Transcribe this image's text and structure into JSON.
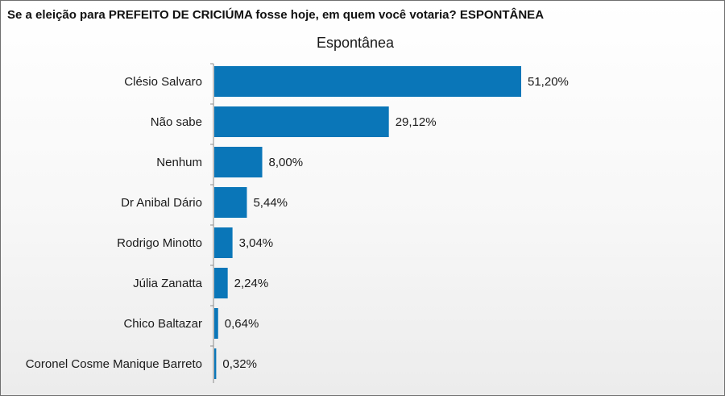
{
  "header": {
    "question": "Se a eleição para PREFEITO DE CRICIÚMA fosse hoje, em quem você votaria? ESPONTÂNEA"
  },
  "chart_data": {
    "type": "bar",
    "orientation": "horizontal",
    "title": "Espontânea",
    "xlabel": "",
    "ylabel": "",
    "categories": [
      "Clésio Salvaro",
      "Não sabe",
      "Nenhum",
      "Dr Anibal Dário",
      "Rodrigo Minotto",
      "Júlia Zanatta",
      "Chico Baltazar",
      "Coronel Cosme Manique Barreto"
    ],
    "values": [
      51.2,
      29.12,
      8.0,
      5.44,
      3.04,
      2.24,
      0.64,
      0.32
    ],
    "value_labels": [
      "51,20%",
      "29,12%",
      "8,00%",
      "5,44%",
      "3,04%",
      "2,24%",
      "0,64%",
      "0,32%"
    ],
    "xlim": [
      0,
      51.2
    ],
    "grid": false,
    "legend": "none",
    "bar_color": "#0a76b8"
  }
}
